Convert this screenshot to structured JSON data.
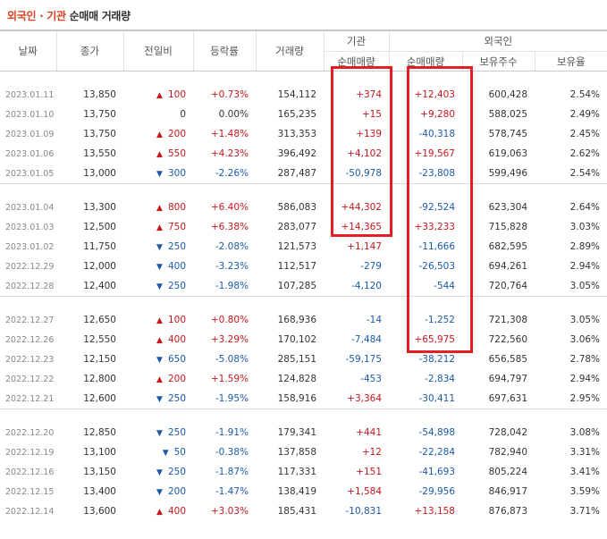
{
  "title": {
    "part1": "외국인 · 기관",
    "part2": " 순매매 거래량"
  },
  "headers": {
    "date": "날짜",
    "close": "종가",
    "change": "전일비",
    "rate": "등락률",
    "volume": "거래량",
    "inst": "기관",
    "foreign": "외국인",
    "inst_net": "순매매량",
    "foreign_net": "순매매량",
    "holdings": "보유주수",
    "ratio": "보유율"
  },
  "colors": {
    "up": "#c8161d",
    "down": "#1a5aa8",
    "highlight": "#e51e25",
    "title_accent": "#d9431e"
  },
  "groups": [
    [
      {
        "date": "2023.01.11",
        "close": "13,850",
        "dir": "up",
        "change": "100",
        "rate": "+0.73%",
        "volume": "154,112",
        "inst": "+374",
        "foreign": "+12,403",
        "holdings": "600,428",
        "ratio": "2.54%"
      },
      {
        "date": "2023.01.10",
        "close": "13,750",
        "dir": "none",
        "change": "0",
        "rate": "0.00%",
        "volume": "165,235",
        "inst": "+15",
        "foreign": "+9,280",
        "holdings": "588,025",
        "ratio": "2.49%"
      },
      {
        "date": "2023.01.09",
        "close": "13,750",
        "dir": "up",
        "change": "200",
        "rate": "+1.48%",
        "volume": "313,353",
        "inst": "+139",
        "foreign": "-40,318",
        "holdings": "578,745",
        "ratio": "2.45%"
      },
      {
        "date": "2023.01.06",
        "close": "13,550",
        "dir": "up",
        "change": "550",
        "rate": "+4.23%",
        "volume": "396,492",
        "inst": "+4,102",
        "foreign": "+19,567",
        "holdings": "619,063",
        "ratio": "2.62%"
      },
      {
        "date": "2023.01.05",
        "close": "13,000",
        "dir": "down",
        "change": "300",
        "rate": "-2.26%",
        "volume": "287,487",
        "inst": "-50,978",
        "foreign": "-23,808",
        "holdings": "599,496",
        "ratio": "2.54%"
      }
    ],
    [
      {
        "date": "2023.01.04",
        "close": "13,300",
        "dir": "up",
        "change": "800",
        "rate": "+6.40%",
        "volume": "586,083",
        "inst": "+44,302",
        "foreign": "-92,524",
        "holdings": "623,304",
        "ratio": "2.64%"
      },
      {
        "date": "2023.01.03",
        "close": "12,500",
        "dir": "up",
        "change": "750",
        "rate": "+6.38%",
        "volume": "283,077",
        "inst": "+14,365",
        "foreign": "+33,233",
        "holdings": "715,828",
        "ratio": "3.03%"
      },
      {
        "date": "2023.01.02",
        "close": "11,750",
        "dir": "down",
        "change": "250",
        "rate": "-2.08%",
        "volume": "121,573",
        "inst": "+1,147",
        "foreign": "-11,666",
        "holdings": "682,595",
        "ratio": "2.89%"
      },
      {
        "date": "2022.12.29",
        "close": "12,000",
        "dir": "down",
        "change": "400",
        "rate": "-3.23%",
        "volume": "112,517",
        "inst": "-279",
        "foreign": "-26,503",
        "holdings": "694,261",
        "ratio": "2.94%"
      },
      {
        "date": "2022.12.28",
        "close": "12,400",
        "dir": "down",
        "change": "250",
        "rate": "-1.98%",
        "volume": "107,285",
        "inst": "-4,120",
        "foreign": "-544",
        "holdings": "720,764",
        "ratio": "3.05%"
      }
    ],
    [
      {
        "date": "2022.12.27",
        "close": "12,650",
        "dir": "up",
        "change": "100",
        "rate": "+0.80%",
        "volume": "168,936",
        "inst": "-14",
        "foreign": "-1,252",
        "holdings": "721,308",
        "ratio": "3.05%"
      },
      {
        "date": "2022.12.26",
        "close": "12,550",
        "dir": "up",
        "change": "400",
        "rate": "+3.29%",
        "volume": "170,102",
        "inst": "-7,484",
        "foreign": "+65,975",
        "holdings": "722,560",
        "ratio": "3.06%"
      },
      {
        "date": "2022.12.23",
        "close": "12,150",
        "dir": "down",
        "change": "650",
        "rate": "-5.08%",
        "volume": "285,151",
        "inst": "-59,175",
        "foreign": "-38,212",
        "holdings": "656,585",
        "ratio": "2.78%"
      },
      {
        "date": "2022.12.22",
        "close": "12,800",
        "dir": "up",
        "change": "200",
        "rate": "+1.59%",
        "volume": "124,828",
        "inst": "-453",
        "foreign": "-2,834",
        "holdings": "694,797",
        "ratio": "2.94%"
      },
      {
        "date": "2022.12.21",
        "close": "12,600",
        "dir": "down",
        "change": "250",
        "rate": "-1.95%",
        "volume": "158,916",
        "inst": "+3,364",
        "foreign": "-30,411",
        "holdings": "697,631",
        "ratio": "2.95%"
      }
    ],
    [
      {
        "date": "2022.12.20",
        "close": "12,850",
        "dir": "down",
        "change": "250",
        "rate": "-1.91%",
        "volume": "179,341",
        "inst": "+441",
        "foreign": "-54,898",
        "holdings": "728,042",
        "ratio": "3.08%"
      },
      {
        "date": "2022.12.19",
        "close": "13,100",
        "dir": "down",
        "change": "50",
        "rate": "-0.38%",
        "volume": "137,858",
        "inst": "+12",
        "foreign": "-22,284",
        "holdings": "782,940",
        "ratio": "3.31%"
      },
      {
        "date": "2022.12.16",
        "close": "13,150",
        "dir": "down",
        "change": "250",
        "rate": "-1.87%",
        "volume": "117,331",
        "inst": "+151",
        "foreign": "-41,693",
        "holdings": "805,224",
        "ratio": "3.41%"
      },
      {
        "date": "2022.12.15",
        "close": "13,400",
        "dir": "down",
        "change": "200",
        "rate": "-1.47%",
        "volume": "138,419",
        "inst": "+1,584",
        "foreign": "-29,956",
        "holdings": "846,917",
        "ratio": "3.59%"
      },
      {
        "date": "2022.12.14",
        "close": "13,600",
        "dir": "up",
        "change": "400",
        "rate": "+3.03%",
        "volume": "185,431",
        "inst": "-10,831",
        "foreign": "+13,158",
        "holdings": "876,873",
        "ratio": "3.71%"
      }
    ]
  ]
}
